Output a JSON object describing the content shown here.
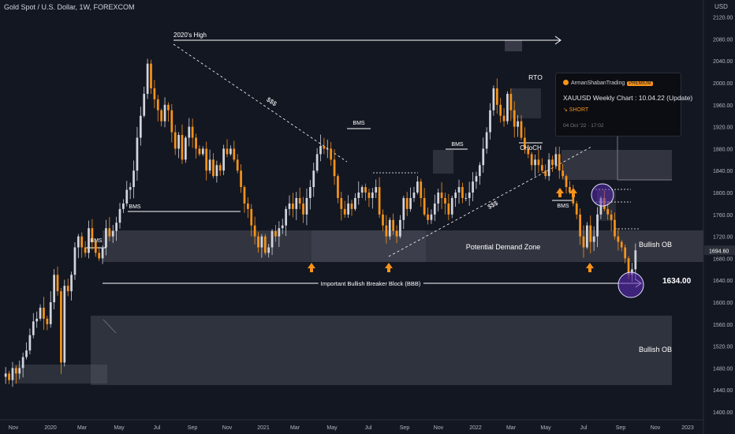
{
  "title": "Gold Spot / U.S. Dollar, 1W, FOREXCOM",
  "currency": "USD",
  "colors": {
    "background": "#131722",
    "bull": "#d1d4dc",
    "bear": "#f7931a",
    "zone": "#5d606b",
    "circle": "#5b2bb5",
    "text": "#ffffff"
  },
  "chart_data": {
    "type": "candlestick",
    "timeframe": "1W",
    "ylim": [
      1380,
      2140
    ],
    "yticks": [
      1400,
      1440,
      1480,
      1520,
      1560,
      1600,
      1640,
      1680,
      1720,
      1760,
      1800,
      1840,
      1880,
      1920,
      1960,
      2000,
      2040,
      2080,
      2120
    ],
    "xlabels": [
      "Nov",
      "2020",
      "Mar",
      "May",
      "Jul",
      "Sep",
      "Nov",
      "2021",
      "Mar",
      "May",
      "Jul",
      "Sep",
      "Nov",
      "2022",
      "Mar",
      "May",
      "Jul",
      "Sep",
      "Nov",
      "2023"
    ],
    "last_price": "1694.60",
    "close_path": [
      1470,
      1458,
      1480,
      1470,
      1480,
      1500,
      1512,
      1540,
      1565,
      1570,
      1590,
      1570,
      1560,
      1600,
      1650,
      1620,
      1490,
      1630,
      1620,
      1650,
      1700,
      1720,
      1700,
      1690,
      1735,
      1710,
      1690,
      1680,
      1700,
      1735,
      1720,
      1730,
      1745,
      1770,
      1780,
      1805,
      1810,
      1840,
      1900,
      1940,
      1980,
      2035,
      1990,
      1970,
      1950,
      1930,
      1960,
      1950,
      1910,
      1880,
      1905,
      1860,
      1900,
      1920,
      1900,
      1880,
      1870,
      1880,
      1840,
      1860,
      1830,
      1850,
      1840,
      1880,
      1870,
      1880,
      1860,
      1840,
      1810,
      1780,
      1770,
      1740,
      1720,
      1700,
      1720,
      1690,
      1700,
      1730,
      1720,
      1735,
      1740,
      1770,
      1780,
      1770,
      1790,
      1780,
      1760,
      1790,
      1810,
      1840,
      1870,
      1885,
      1880,
      1880,
      1860,
      1830,
      1790,
      1770,
      1760,
      1780,
      1770,
      1790,
      1800,
      1810,
      1800,
      1790,
      1800,
      1810,
      1760,
      1740,
      1720,
      1750,
      1730,
      1720,
      1750,
      1790,
      1770,
      1790,
      1800,
      1820,
      1790,
      1760,
      1750,
      1760,
      1780,
      1800,
      1790,
      1780,
      1760,
      1790,
      1800,
      1810,
      1790,
      1790,
      1800,
      1820,
      1830,
      1850,
      1880,
      1910,
      1950,
      1990,
      1960,
      1940,
      1930,
      1980,
      1950,
      1920,
      1930,
      1900,
      1880,
      1870,
      1850,
      1860,
      1850,
      1840,
      1830,
      1860,
      1850,
      1870,
      1840,
      1830,
      1810,
      1800,
      1780,
      1760,
      1720,
      1700,
      1740,
      1710,
      1720,
      1760,
      1790,
      1770,
      1760,
      1750,
      1720,
      1710,
      1700,
      1680,
      1650,
      1660,
      1694.6
    ],
    "annotations": {
      "highs": "2020's High",
      "bms": "BMS",
      "sss": "$$$",
      "rto": "RTO",
      "choch": "CHoCH",
      "demand_zone": "Potential Demand Zone",
      "bullish_ob": "Bullish OB",
      "breaker": "Important Bullish Breaker Block (BBB)",
      "breaker_level": "1634.00"
    }
  },
  "idea_card": {
    "author": "ArmanShabanTrading",
    "badge": "PREMIUM",
    "title": "XAUUSD Weekly Chart : 10.04.22 (Update)",
    "direction": "↘ SHORT",
    "date": "04 Oct '22 · 17:02"
  }
}
